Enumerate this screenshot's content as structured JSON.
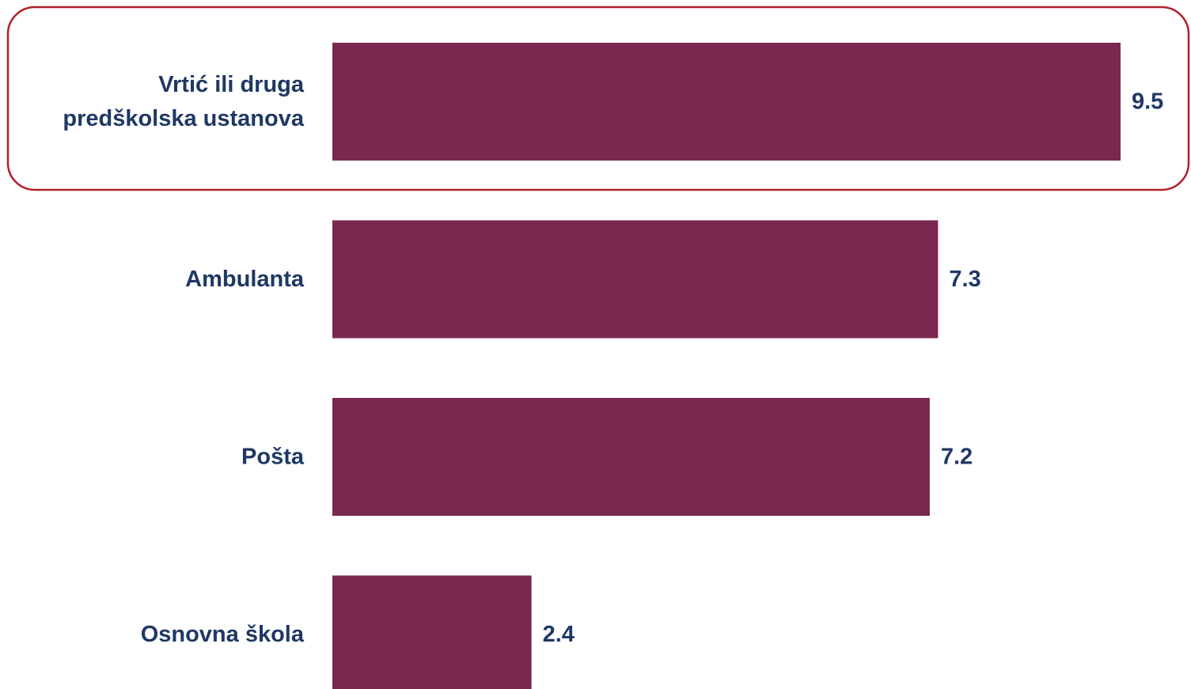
{
  "chart_data": {
    "type": "bar",
    "orientation": "horizontal",
    "categories": [
      [
        "Vrtić ili druga",
        "predškolska ustanova"
      ],
      [
        "Ambulanta"
      ],
      [
        "Pošta"
      ],
      [
        "Osnovna škola"
      ]
    ],
    "values": [
      9.5,
      7.3,
      7.2,
      2.4
    ],
    "value_labels": [
      "9.5",
      "7.3",
      "7.2",
      "2.4"
    ],
    "xlim": [
      0,
      9.5
    ],
    "grid": false,
    "highlighted_category_index": 0,
    "colors": {
      "bar": "#7a2850",
      "label_text": "#1f3864",
      "highlight_border": "#b0202a"
    }
  }
}
